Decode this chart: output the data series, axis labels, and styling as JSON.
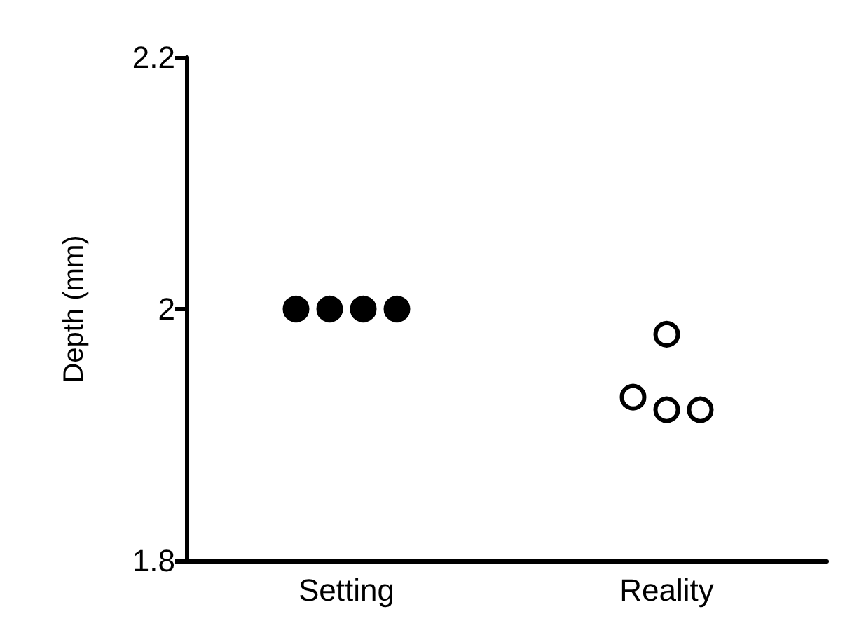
{
  "chart_data": {
    "type": "scatter",
    "ylabel": "Depth (mm)",
    "categories": [
      "Setting",
      "Reality"
    ],
    "series": [
      {
        "color": "#000000",
        "x": [
          "Setting",
          "Setting",
          "Setting",
          "Setting"
        ],
        "values": [
          2,
          2,
          2,
          2
        ]
      },
      {
        "color": "#ffffff",
        "x": [
          "Reality",
          "Reality",
          "Reality",
          "Reality"
        ],
        "values": [
          1.98,
          1.93,
          1.92,
          1.92
        ]
      }
    ],
    "ylim": [
      1.8,
      2.2
    ],
    "yticks": [
      1.8,
      2,
      2.2
    ],
    "grid": false,
    "marker": "circle"
  }
}
